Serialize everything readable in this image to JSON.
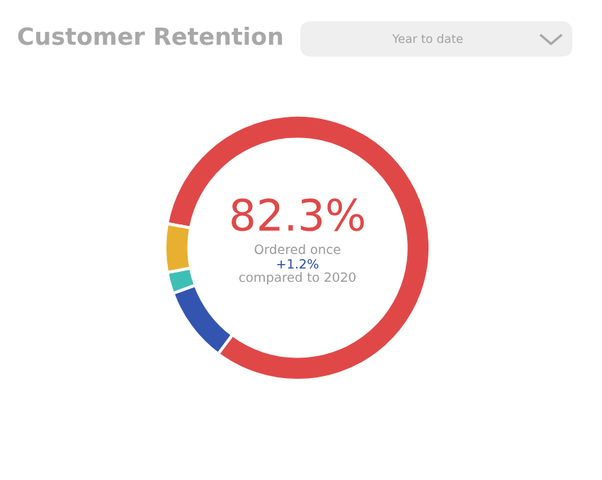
{
  "chart_data": {
    "type": "donut",
    "title": "Customer Retention",
    "categories": [
      "Ordered once",
      null,
      null,
      null
    ],
    "values": [
      82.3,
      9.2,
      2.6,
      5.9
    ],
    "colors": [
      "#e04848",
      "#3355b0",
      "#3ebfb5",
      "#e8b030"
    ],
    "value_labels": [
      "82.3%",
      null,
      null,
      null
    ],
    "annotations": [
      "+1.2%",
      "compared to 2020",
      "Year to date"
    ],
    "legend": false
  }
}
